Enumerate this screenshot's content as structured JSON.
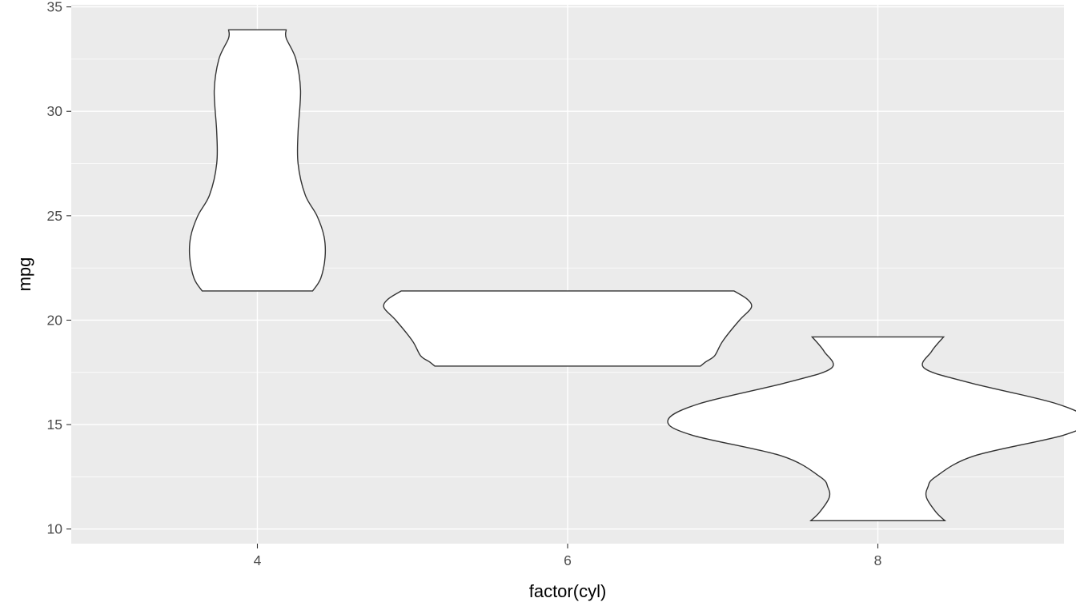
{
  "chart_data": {
    "type": "violin",
    "xlabel": "factor(cyl)",
    "ylabel": "mpg",
    "categories": [
      "4",
      "6",
      "8"
    ],
    "ylim": [
      9.3,
      35.1
    ],
    "yticks": [
      10,
      15,
      20,
      25,
      30,
      35
    ],
    "grid": true,
    "background": "#EBEBEB",
    "violins": [
      {
        "category": "4",
        "ymin": 21.4,
        "ymax": 33.9,
        "profile": [
          [
            21.4,
            0.178
          ],
          [
            22.0,
            0.204
          ],
          [
            23.0,
            0.218
          ],
          [
            24.0,
            0.215
          ],
          [
            25.0,
            0.192
          ],
          [
            26.0,
            0.154
          ],
          [
            27.5,
            0.131
          ],
          [
            29.0,
            0.131
          ],
          [
            31.0,
            0.139
          ],
          [
            32.5,
            0.124
          ],
          [
            33.5,
            0.093
          ],
          [
            33.9,
            0.093
          ]
        ]
      },
      {
        "category": "6",
        "ymin": 17.8,
        "ymax": 21.4,
        "profile": [
          [
            17.8,
            0.428
          ],
          [
            18.0,
            0.445
          ],
          [
            18.3,
            0.474
          ],
          [
            19.0,
            0.5
          ],
          [
            20.0,
            0.554
          ],
          [
            20.6,
            0.592
          ],
          [
            21.0,
            0.579
          ],
          [
            21.4,
            0.536
          ]
        ]
      },
      {
        "category": "8",
        "ymin": 10.4,
        "ymax": 19.2,
        "profile": [
          [
            10.4,
            0.216
          ],
          [
            10.8,
            0.188
          ],
          [
            11.5,
            0.157
          ],
          [
            12.0,
            0.161
          ],
          [
            12.5,
            0.186
          ],
          [
            13.5,
            0.31
          ],
          [
            14.5,
            0.6
          ],
          [
            15.2,
            0.677
          ],
          [
            16.0,
            0.576
          ],
          [
            17.0,
            0.297
          ],
          [
            17.7,
            0.15
          ],
          [
            18.5,
            0.173
          ],
          [
            19.2,
            0.212
          ]
        ]
      }
    ]
  }
}
